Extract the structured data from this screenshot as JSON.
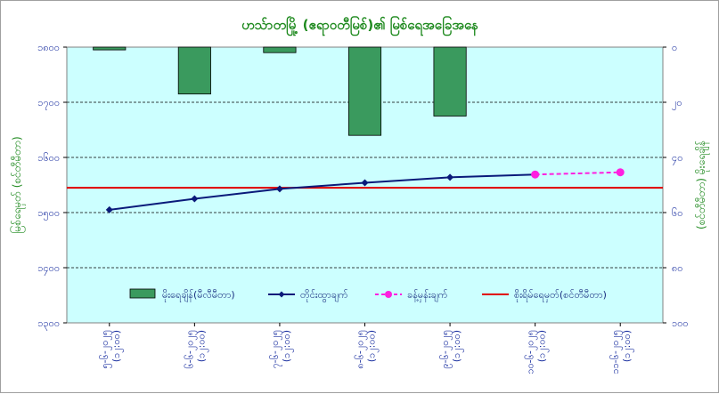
{
  "chart_data": {
    "type": "bar+line",
    "title": "ဟသ်ာတမြို့ (ဧရာဝတီမြစ်)၏ မြစ်ရေအခြေအနေ",
    "ylabel_left": "မြစ်ရေမှတ် (စင်တီမီတာ)",
    "ylabel_right": "(စင်တီမီတာ) မိုးရေချိန်",
    "ylim_left": [
      1300,
      1800
    ],
    "yticks_left": [
      {
        "value": 1800,
        "label": "၁၈၀၀"
      },
      {
        "value": 1700,
        "label": "၁၇၀၀"
      },
      {
        "value": 1600,
        "label": "၁၆၀၀"
      },
      {
        "value": 1500,
        "label": "၁၅၀၀"
      },
      {
        "value": 1400,
        "label": "၁၄၀၀"
      },
      {
        "value": 1300,
        "label": "၁၃၀၀"
      }
    ],
    "ylim_right": [
      0,
      100
    ],
    "yticks_right": [
      {
        "value": 0,
        "label": "၀"
      },
      {
        "value": 20,
        "label": "၂၀"
      },
      {
        "value": 40,
        "label": "၄၀"
      },
      {
        "value": 60,
        "label": "၆၀"
      },
      {
        "value": 80,
        "label": "၈၀"
      },
      {
        "value": 100,
        "label": "၁၀၀"
      }
    ],
    "categories": [
      {
        "line1": "၅-၆-၂၀၂၅",
        "line2": "(၁၂:၀၀)"
      },
      {
        "line1": "၆-၆-၂၀၂၅",
        "line2": "(၁၂:၀၀)"
      },
      {
        "line1": "၇-၆-၂၀၂၅",
        "line2": "(၁၂:၀၀)"
      },
      {
        "line1": "၈-၆-၂၀၂၅",
        "line2": "(၁၂:၀၀)"
      },
      {
        "line1": "၉-၆-၂၀၂၅",
        "line2": "(၁၂:၀၀)"
      },
      {
        "line1": "၁၀-၆-၂၀၂၅",
        "line2": "(၁၂:၀၀)"
      },
      {
        "line1": "၁၁-၆-၂၀၂၅",
        "line2": "(၁၂:၀၀)"
      }
    ],
    "series": [
      {
        "name": "မိုးရေချိန်(မီလီမီတာ)",
        "kind": "bar",
        "axis": "right",
        "color": "#3a9a5e",
        "values": [
          1,
          17,
          2,
          32,
          25,
          null,
          null
        ]
      },
      {
        "name": "တိုင်းထွာချက်",
        "kind": "line",
        "axis": "left",
        "color": "#0a1a7a",
        "values": [
          1505,
          1525,
          1543,
          1554,
          1564,
          1569,
          null
        ]
      },
      {
        "name": "ခန့်မှန်းချက်",
        "kind": "dashed-line",
        "axis": "left",
        "color": "#ff1fe0",
        "values": [
          null,
          null,
          null,
          null,
          null,
          1569,
          1573
        ]
      },
      {
        "name": "စိုးရိမ်ရေမှတ်(စင်တီမီတာ)",
        "kind": "hline",
        "axis": "left",
        "color": "#e00000",
        "value": 1545
      }
    ],
    "grid": true,
    "legend": "bottom-inside",
    "plot_background": "#ccffff"
  }
}
